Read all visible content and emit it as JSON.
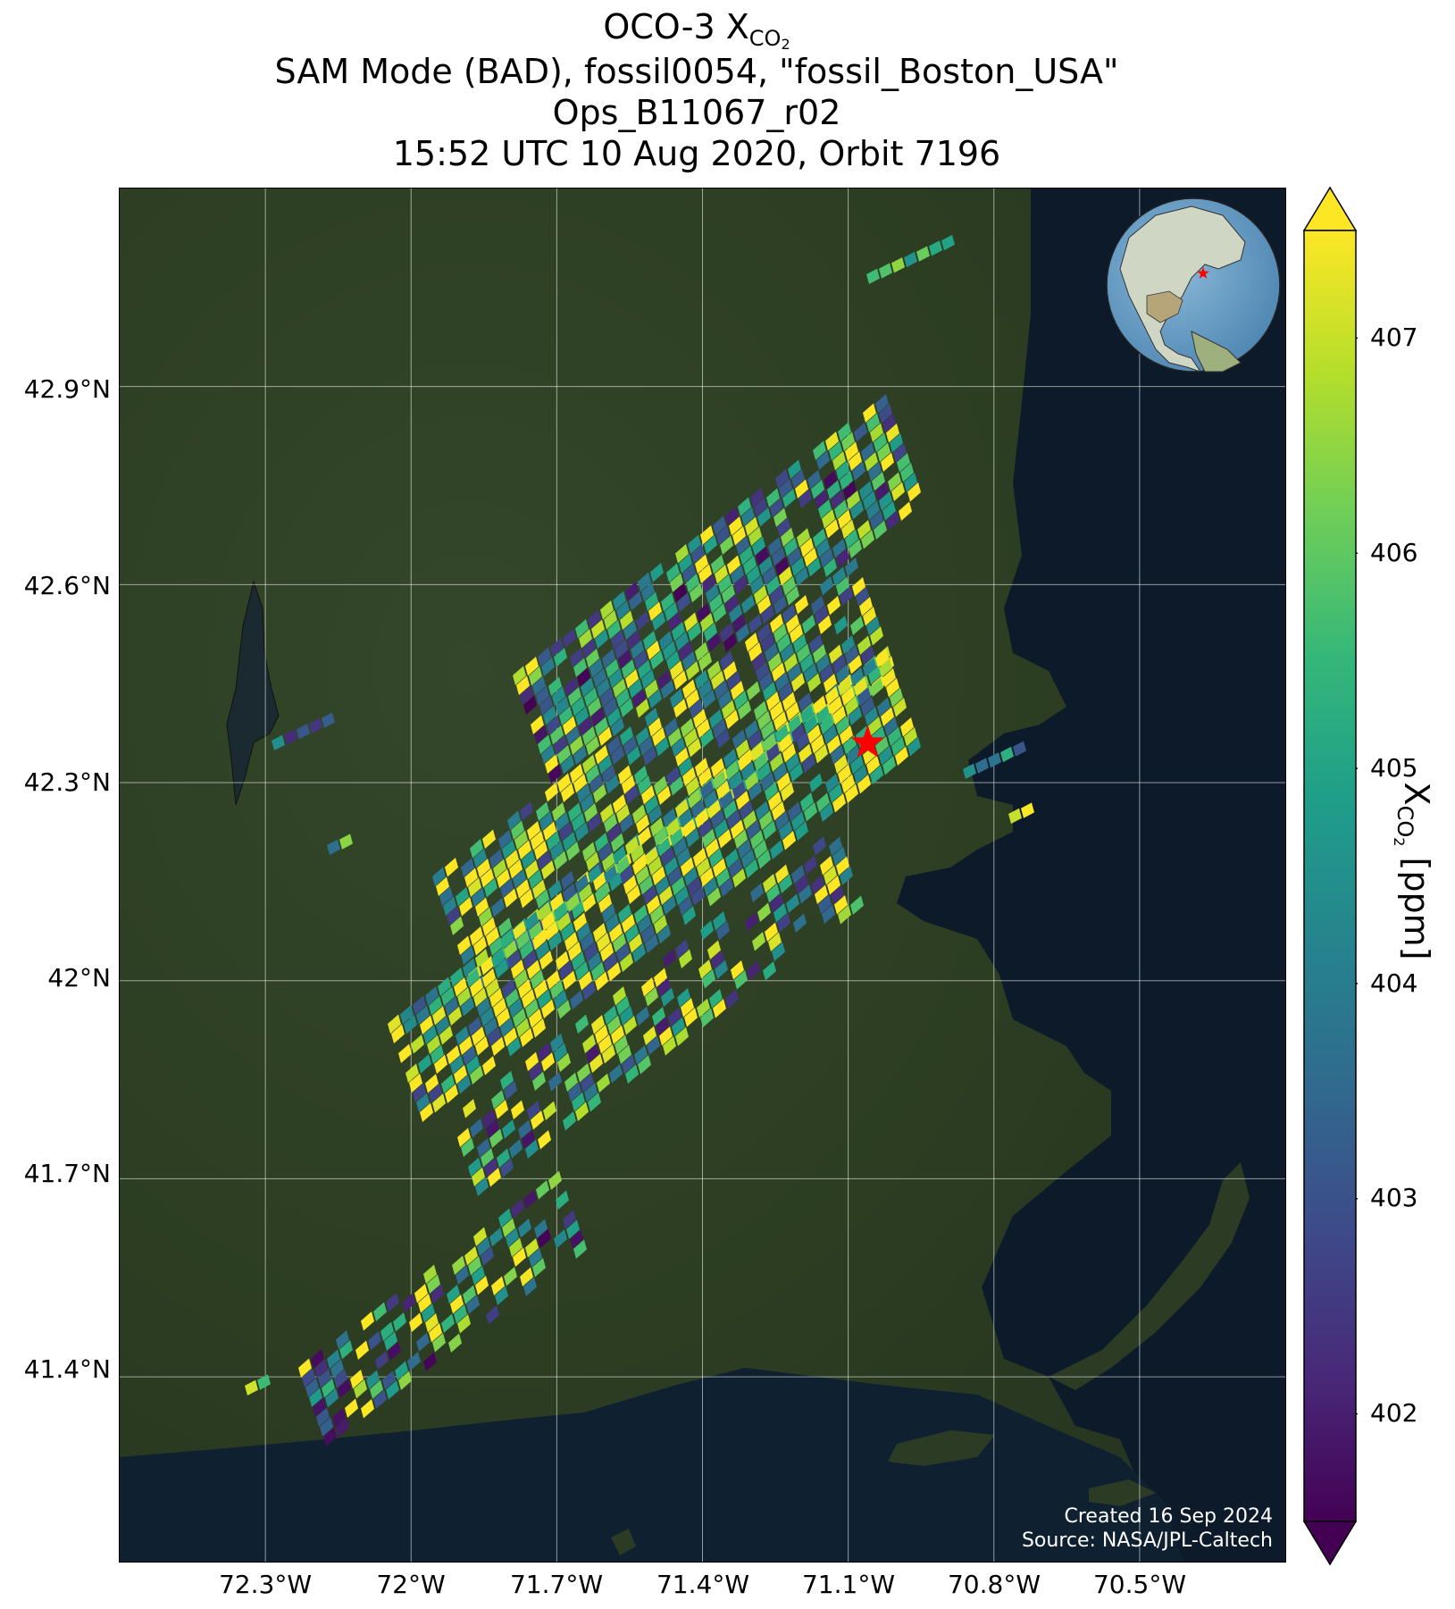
{
  "title": {
    "line1_prefix": "OCO-3 X",
    "line1_sub": "CO",
    "line1_sub2": "2",
    "line2": "SAM Mode (BAD), fossil0054, \"fossil_Boston_USA\"",
    "line3": "Ops_B11067_r02",
    "line4": "15:52 UTC 10 Aug 2020, Orbit 7196"
  },
  "lat_ticks": [
    "42.9°N",
    "42.6°N",
    "42.3°N",
    "42°N",
    "41.7°N",
    "41.4°N"
  ],
  "lon_ticks": [
    "72.3°W",
    "72°W",
    "71.7°W",
    "71.4°W",
    "71.1°W",
    "70.8°W",
    "70.5°W"
  ],
  "map_extent": {
    "lon_min": -72.6,
    "lon_max": -70.2,
    "lat_min": 41.12,
    "lat_max": 43.2
  },
  "grid_lats": [
    42.9,
    42.6,
    42.3,
    42.0,
    41.7,
    41.4
  ],
  "grid_lons": [
    -72.3,
    -72.0,
    -71.7,
    -71.4,
    -71.1,
    -70.8,
    -70.5
  ],
  "target": {
    "lon": -71.06,
    "lat": 42.36,
    "marker_color": "#ff0000",
    "name": "fossil_Boston_USA"
  },
  "colorbar": {
    "ticks": [
      "402",
      "403",
      "404",
      "405",
      "406",
      "407"
    ],
    "tick_values": [
      402,
      403,
      404,
      405,
      406,
      407
    ],
    "vmin": 401.5,
    "vmax": 407.5,
    "colormap": "viridis",
    "extend": "both",
    "label_prefix": "X",
    "label_sub": "CO",
    "label_sub2": "2",
    "label_suffix": " [ppm]"
  },
  "credit": {
    "line1": "Created 16 Sep 2024",
    "line2": "Source: NASA/JPL-Caltech"
  },
  "colors": {
    "land": "#2e3f22",
    "ocean": "#0d1a2a",
    "gridline": "#ffffff"
  },
  "icons": [
    "globe-inset-icon",
    "star-marker-icon"
  ]
}
